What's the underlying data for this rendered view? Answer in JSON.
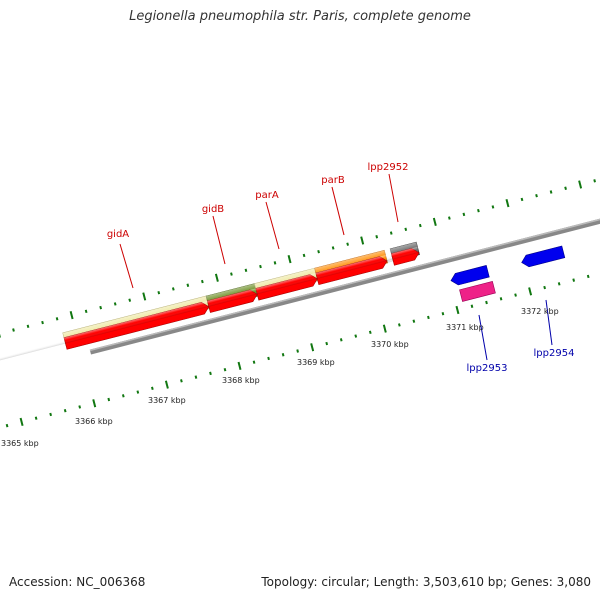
{
  "title": "Legionella pneumophila str. Paris, complete genome",
  "footer": {
    "accession": "Accession: NC_006368",
    "summary": "Topology: circular; Length: 3,503,610 bp; Genes: 3,080"
  },
  "scale": {
    "ticks": [
      "3365 kbp",
      "3366 kbp",
      "3367 kbp",
      "3368 kbp",
      "3369 kbp",
      "3370 kbp",
      "3371 kbp",
      "3372 kbp"
    ]
  },
  "genes_top": [
    {
      "label": "gidA",
      "color": "#cc0000"
    },
    {
      "label": "gidB",
      "color": "#cc0000"
    },
    {
      "label": "parA",
      "color": "#cc0000"
    },
    {
      "label": "parB",
      "color": "#cc0000"
    },
    {
      "label": "lpp2952",
      "color": "#cc0000"
    }
  ],
  "genes_bottom": [
    {
      "label": "lpp2953",
      "color": "#0000aa"
    },
    {
      "label": "lpp2954",
      "color": "#0000aa"
    }
  ],
  "colors": {
    "forward_gene": "#ff0000",
    "reverse_gene": "#0000ee",
    "rrna_like": "#ee2288",
    "cog_khaki": "#eee8a0",
    "cog_olive": "#6b8e23",
    "cog_orange": "#ff8c00",
    "cog_gray": "#666666",
    "backbone": "#888888",
    "tick": "#117711"
  }
}
